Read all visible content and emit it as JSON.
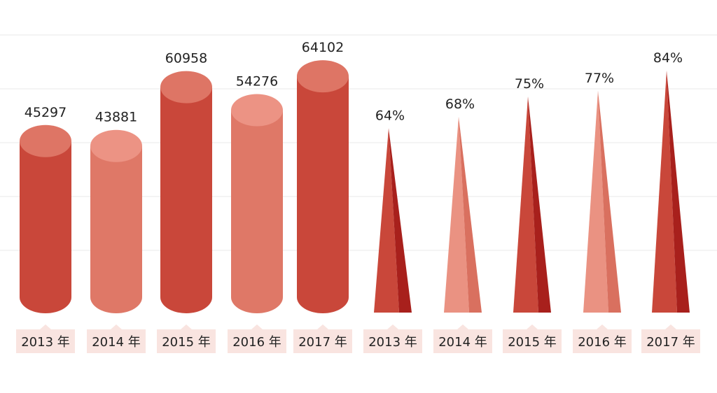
{
  "colors": {
    "dark": "#c9473a",
    "dark_top": "#de7565",
    "light": "#df7867",
    "light_top": "#ec9384",
    "cone_dark_side": "#a8201c",
    "cone_light": "#ea9282",
    "cone_light_side": "#d9705f",
    "label_bg": "#f9e4e0",
    "gridline": "#e9e9e9"
  },
  "chart_data": [
    {
      "type": "bar",
      "style": "cylinder",
      "categories": [
        "2013 年",
        "2014 年",
        "2015 年",
        "2016 年",
        "2017 年"
      ],
      "values": [
        45297,
        43881,
        60958,
        54276,
        64102
      ],
      "value_labels": [
        "45297",
        "43881",
        "60958",
        "54276",
        "64102"
      ],
      "shades": [
        "dark",
        "light",
        "dark",
        "light",
        "dark"
      ],
      "ylim": [
        0,
        70000
      ]
    },
    {
      "type": "bar",
      "style": "cone",
      "categories": [
        "2013 年",
        "2014 年",
        "2015 年",
        "2016 年",
        "2017 年"
      ],
      "values": [
        64,
        68,
        75,
        77,
        84
      ],
      "value_labels": [
        "64%",
        "68%",
        "75%",
        "77%",
        "84%"
      ],
      "shades": [
        "dark",
        "light",
        "dark",
        "light",
        "dark"
      ],
      "ylim": [
        0,
        100
      ]
    }
  ]
}
